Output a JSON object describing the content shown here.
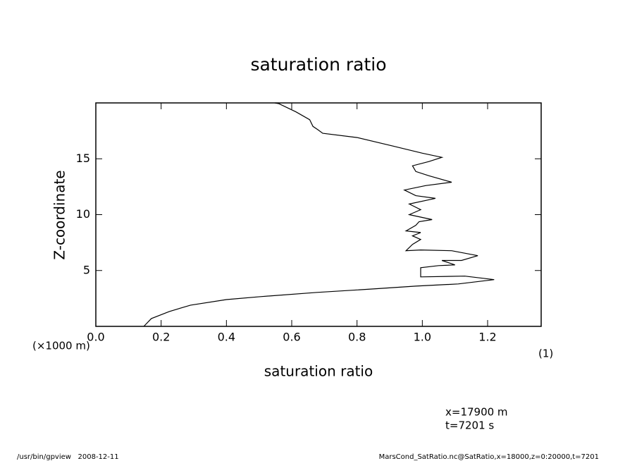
{
  "chart_data": {
    "type": "line",
    "title": "saturation ratio",
    "x_label": "saturation ratio",
    "y_label": "Z-coordinate",
    "y_unit": "(×1000 m)",
    "x_unit": "(1)",
    "annotations": [
      "x=17900 m",
      "t=7201 s"
    ],
    "footer_left": "/usr/bin/gpview   2008-12-11",
    "footer_right": "MarsCond_SatRatio.nc@SatRatio,x=18000,z=0:20000,t=7201",
    "xlim": [
      0,
      1.364
    ],
    "ylim": [
      0,
      20
    ],
    "xticks": [
      {
        "value": 0,
        "label": "0.0"
      },
      0.2,
      0.4,
      0.6,
      0.8,
      {
        "value": 1,
        "label": "1.0"
      },
      1.2
    ],
    "yticks": [
      5,
      10,
      15
    ],
    "series": [
      {
        "color": "#000000",
        "values": [
          0.147,
          0.17,
          0.225,
          0.29,
          0.4,
          0.505,
          0.678,
          0.85,
          0.98,
          1.11,
          1.22,
          1.13,
          0.995,
          0.995,
          1.05,
          1.1,
          1.06,
          1.12,
          1.17,
          1.09,
          0.995,
          0.95,
          0.97,
          0.995,
          0.97,
          0.995,
          0.95,
          0.98,
          0.99,
          1.03,
          0.96,
          0.995,
          0.96,
          1.04,
          0.98,
          0.945,
          1.01,
          1.09,
          1.02,
          0.98,
          0.97,
          1.02,
          1.06,
          1.0,
          0.91,
          0.8,
          0.695,
          0.68,
          0.665,
          0.655,
          0.613,
          0.56,
          0.548
        ],
        "z": [
          0,
          0.7,
          1.33,
          1.9,
          2.4,
          2.66,
          3.04,
          3.35,
          3.6,
          3.8,
          4.18,
          4.5,
          4.43,
          5.25,
          5.44,
          5.5,
          5.9,
          5.9,
          6.33,
          6.77,
          6.84,
          6.77,
          7.34,
          7.78,
          8.1,
          8.4,
          8.54,
          9.05,
          9.37,
          9.56,
          10.0,
          10.44,
          10.95,
          11.46,
          11.7,
          12.2,
          12.6,
          12.9,
          13.48,
          13.86,
          14.37,
          14.75,
          15.13,
          15.5,
          16.14,
          16.9,
          17.28,
          17.6,
          17.9,
          18.5,
          19.2,
          19.94,
          20
        ]
      }
    ]
  }
}
